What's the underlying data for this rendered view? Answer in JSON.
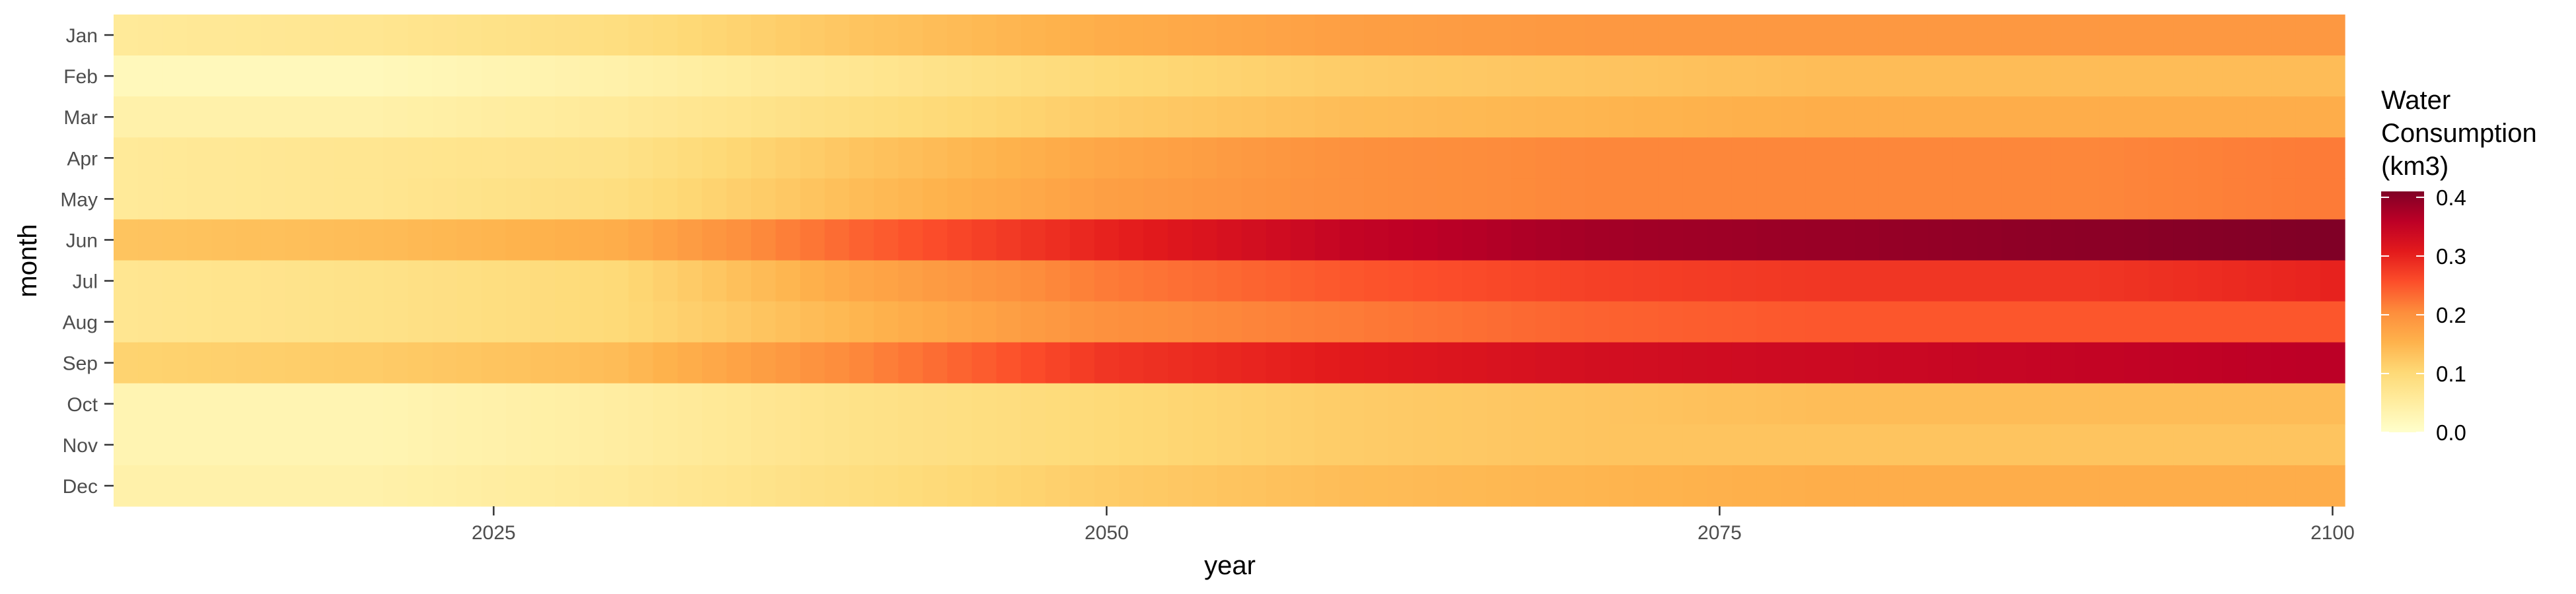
{
  "chart_data": {
    "type": "heatmap",
    "x_start": 2010,
    "x_end": 2100,
    "xlabel": "year",
    "ylabel": "month",
    "xticks": [
      2025,
      2050,
      2075,
      2100
    ],
    "xlim": [
      2010,
      2100
    ],
    "months": [
      "Jan",
      "Feb",
      "Mar",
      "Apr",
      "May",
      "Jun",
      "Jul",
      "Aug",
      "Sep",
      "Oct",
      "Nov",
      "Dec"
    ],
    "series": [
      {
        "month": "Jan",
        "anchors": [
          [
            2010,
            0.06
          ],
          [
            2020,
            0.07
          ],
          [
            2030,
            0.09
          ],
          [
            2040,
            0.13
          ],
          [
            2050,
            0.16
          ],
          [
            2060,
            0.18
          ],
          [
            2070,
            0.19
          ],
          [
            2080,
            0.19
          ],
          [
            2090,
            0.19
          ],
          [
            2100,
            0.19
          ]
        ]
      },
      {
        "month": "Feb",
        "anchors": [
          [
            2010,
            0.02
          ],
          [
            2020,
            0.02
          ],
          [
            2030,
            0.04
          ],
          [
            2040,
            0.07
          ],
          [
            2050,
            0.1
          ],
          [
            2060,
            0.12
          ],
          [
            2070,
            0.13
          ],
          [
            2080,
            0.14
          ],
          [
            2090,
            0.14
          ],
          [
            2100,
            0.14
          ]
        ]
      },
      {
        "month": "Mar",
        "anchors": [
          [
            2010,
            0.04
          ],
          [
            2020,
            0.04
          ],
          [
            2030,
            0.06
          ],
          [
            2040,
            0.09
          ],
          [
            2050,
            0.12
          ],
          [
            2060,
            0.14
          ],
          [
            2070,
            0.15
          ],
          [
            2080,
            0.16
          ],
          [
            2090,
            0.16
          ],
          [
            2100,
            0.16
          ]
        ]
      },
      {
        "month": "Apr",
        "anchors": [
          [
            2010,
            0.06
          ],
          [
            2020,
            0.07
          ],
          [
            2030,
            0.08
          ],
          [
            2040,
            0.13
          ],
          [
            2050,
            0.17
          ],
          [
            2060,
            0.2
          ],
          [
            2070,
            0.21
          ],
          [
            2080,
            0.21
          ],
          [
            2090,
            0.21
          ],
          [
            2100,
            0.22
          ]
        ]
      },
      {
        "month": "May",
        "anchors": [
          [
            2010,
            0.06
          ],
          [
            2020,
            0.07
          ],
          [
            2030,
            0.09
          ],
          [
            2040,
            0.14
          ],
          [
            2050,
            0.18
          ],
          [
            2060,
            0.2
          ],
          [
            2070,
            0.21
          ],
          [
            2080,
            0.21
          ],
          [
            2090,
            0.21
          ],
          [
            2100,
            0.22
          ]
        ]
      },
      {
        "month": "Jun",
        "anchors": [
          [
            2010,
            0.13
          ],
          [
            2020,
            0.14
          ],
          [
            2030,
            0.16
          ],
          [
            2040,
            0.24
          ],
          [
            2050,
            0.3
          ],
          [
            2060,
            0.35
          ],
          [
            2070,
            0.38
          ],
          [
            2080,
            0.39
          ],
          [
            2090,
            0.4
          ],
          [
            2100,
            0.41
          ]
        ]
      },
      {
        "month": "Jul",
        "anchors": [
          [
            2010,
            0.07
          ],
          [
            2020,
            0.08
          ],
          [
            2030,
            0.1
          ],
          [
            2040,
            0.17
          ],
          [
            2050,
            0.22
          ],
          [
            2060,
            0.25
          ],
          [
            2070,
            0.27
          ],
          [
            2080,
            0.28
          ],
          [
            2090,
            0.28
          ],
          [
            2100,
            0.3
          ]
        ]
      },
      {
        "month": "Aug",
        "anchors": [
          [
            2010,
            0.07
          ],
          [
            2020,
            0.08
          ],
          [
            2030,
            0.1
          ],
          [
            2040,
            0.15
          ],
          [
            2050,
            0.2
          ],
          [
            2060,
            0.22
          ],
          [
            2070,
            0.24
          ],
          [
            2080,
            0.25
          ],
          [
            2090,
            0.25
          ],
          [
            2100,
            0.25
          ]
        ]
      },
      {
        "month": "Sep",
        "anchors": [
          [
            2010,
            0.11
          ],
          [
            2020,
            0.12
          ],
          [
            2030,
            0.14
          ],
          [
            2040,
            0.21
          ],
          [
            2050,
            0.28
          ],
          [
            2060,
            0.31
          ],
          [
            2070,
            0.33
          ],
          [
            2080,
            0.34
          ],
          [
            2090,
            0.35
          ],
          [
            2100,
            0.36
          ]
        ]
      },
      {
        "month": "Oct",
        "anchors": [
          [
            2010,
            0.03
          ],
          [
            2020,
            0.03
          ],
          [
            2030,
            0.05
          ],
          [
            2040,
            0.08
          ],
          [
            2050,
            0.1
          ],
          [
            2060,
            0.12
          ],
          [
            2070,
            0.13
          ],
          [
            2080,
            0.14
          ],
          [
            2090,
            0.14
          ],
          [
            2100,
            0.14
          ]
        ]
      },
      {
        "month": "Nov",
        "anchors": [
          [
            2010,
            0.03
          ],
          [
            2020,
            0.03
          ],
          [
            2030,
            0.05
          ],
          [
            2040,
            0.08
          ],
          [
            2050,
            0.1
          ],
          [
            2060,
            0.12
          ],
          [
            2070,
            0.13
          ],
          [
            2080,
            0.13
          ],
          [
            2090,
            0.13
          ],
          [
            2100,
            0.13
          ]
        ]
      },
      {
        "month": "Dec",
        "anchors": [
          [
            2010,
            0.04
          ],
          [
            2020,
            0.04
          ],
          [
            2030,
            0.06
          ],
          [
            2040,
            0.09
          ],
          [
            2050,
            0.12
          ],
          [
            2060,
            0.14
          ],
          [
            2070,
            0.15
          ],
          [
            2080,
            0.16
          ],
          [
            2090,
            0.16
          ],
          [
            2100,
            0.16
          ]
        ]
      }
    ],
    "legend": {
      "title_lines": [
        "Water",
        "Consumption",
        "(km3)"
      ],
      "min": 0,
      "max": 0.41,
      "ticks": [
        "0.0",
        "0.1",
        "0.2",
        "0.3",
        "0.4"
      ],
      "tick_values": [
        0.0,
        0.1,
        0.2,
        0.3,
        0.4
      ],
      "placement": "right"
    },
    "palette": [
      "#ffffcc",
      "#ffeda0",
      "#fed976",
      "#feb24c",
      "#fd8d3c",
      "#fc4e2a",
      "#e31a1c",
      "#bd0026",
      "#800026"
    ],
    "grid": false
  }
}
